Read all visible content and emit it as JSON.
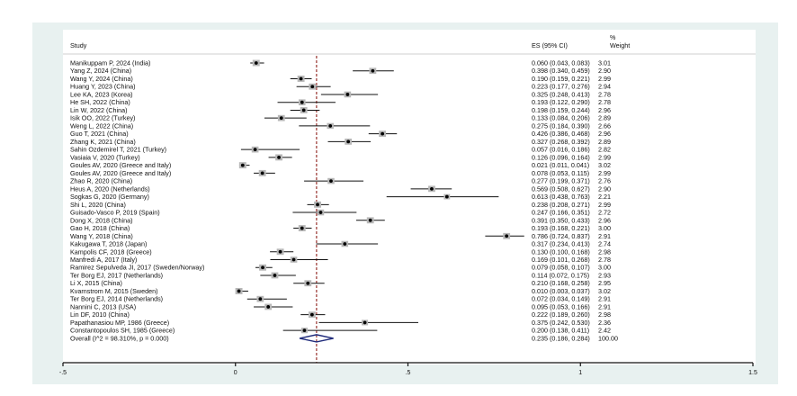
{
  "chart_data": {
    "type": "forest",
    "title": "",
    "headers": {
      "study": "Study",
      "es": "ES (95% CI)",
      "weight_top": "%",
      "weight": "Weight"
    },
    "xlim": [
      -0.5,
      1.5
    ],
    "xticks": [
      -0.5,
      0,
      0.5,
      1,
      1.5
    ],
    "xtick_labels": [
      "-.5",
      "0",
      ".5",
      "1",
      "1.5"
    ],
    "reference_line": 0.235,
    "colors": {
      "frame": "#e8f1f0",
      "marker": "#000000",
      "weight_box": "#b8b8b8",
      "ref_line": "#a0433f",
      "diamond": "#1f2a7a"
    },
    "studies": [
      {
        "label": "Manikuppam P, 2024 (India)",
        "es": 0.06,
        "lo": 0.043,
        "hi": 0.083,
        "ci_text": "0.060 (0.043, 0.083)",
        "weight": "3.01"
      },
      {
        "label": "Yang Z, 2024 (China)",
        "es": 0.398,
        "lo": 0.34,
        "hi": 0.459,
        "ci_text": "0.398 (0.340, 0.459)",
        "weight": "2.90"
      },
      {
        "label": "Wang Y, 2024 (China)",
        "es": 0.19,
        "lo": 0.159,
        "hi": 0.221,
        "ci_text": "0.190 (0.159, 0.221)",
        "weight": "2.99"
      },
      {
        "label": "Huang Y, 2023 (China)",
        "es": 0.223,
        "lo": 0.177,
        "hi": 0.276,
        "ci_text": "0.223 (0.177, 0.276)",
        "weight": "2.94"
      },
      {
        "label": "Lee KA, 2023 (Korea)",
        "es": 0.325,
        "lo": 0.248,
        "hi": 0.413,
        "ci_text": "0.325 (0.248, 0.413)",
        "weight": "2.78"
      },
      {
        "label": "He SH, 2022 (China)",
        "es": 0.193,
        "lo": 0.122,
        "hi": 0.29,
        "ci_text": "0.193 (0.122, 0.290)",
        "weight": "2.78"
      },
      {
        "label": "Lin W, 2022 (China)",
        "es": 0.198,
        "lo": 0.159,
        "hi": 0.244,
        "ci_text": "0.198 (0.159, 0.244)",
        "weight": "2.96"
      },
      {
        "label": "Isik OO, 2022 (Turkey)",
        "es": 0.133,
        "lo": 0.084,
        "hi": 0.206,
        "ci_text": "0.133 (0.084, 0.206)",
        "weight": "2.89"
      },
      {
        "label": "Weng L, 2022 (China)",
        "es": 0.275,
        "lo": 0.184,
        "hi": 0.39,
        "ci_text": "0.275 (0.184, 0.390)",
        "weight": "2.66"
      },
      {
        "label": "Guo T, 2021 (China)",
        "es": 0.426,
        "lo": 0.386,
        "hi": 0.468,
        "ci_text": "0.426 (0.386, 0.468)",
        "weight": "2.96"
      },
      {
        "label": "Zhang K, 2021 (China)",
        "es": 0.327,
        "lo": 0.268,
        "hi": 0.392,
        "ci_text": "0.327 (0.268, 0.392)",
        "weight": "2.89"
      },
      {
        "label": "Sahin Ozdemirel T, 2021 (Turkey)",
        "es": 0.057,
        "lo": 0.016,
        "hi": 0.186,
        "ci_text": "0.057 (0.016, 0.186)",
        "weight": "2.82"
      },
      {
        "label": "Vasiaia V, 2020 (Turkey)",
        "es": 0.126,
        "lo": 0.096,
        "hi": 0.164,
        "ci_text": "0.126 (0.096, 0.164)",
        "weight": "2.99"
      },
      {
        "label": "Goules AV, 2020 (Greece and Italy)",
        "es": 0.021,
        "lo": 0.011,
        "hi": 0.041,
        "ci_text": "0.021 (0.011, 0.041)",
        "weight": "3.02"
      },
      {
        "label": "Goules AV, 2020 (Greece and Italy)",
        "es": 0.078,
        "lo": 0.053,
        "hi": 0.115,
        "ci_text": "0.078 (0.053, 0.115)",
        "weight": "2.99"
      },
      {
        "label": "Zhao R, 2020 (China)",
        "es": 0.277,
        "lo": 0.199,
        "hi": 0.371,
        "ci_text": "0.277 (0.199, 0.371)",
        "weight": "2.76"
      },
      {
        "label": "Heus A, 2020 (Netherlands)",
        "es": 0.569,
        "lo": 0.508,
        "hi": 0.627,
        "ci_text": "0.569 (0.508, 0.627)",
        "weight": "2.90"
      },
      {
        "label": "Sogkas G, 2020 (Germany)",
        "es": 0.613,
        "lo": 0.438,
        "hi": 0.763,
        "ci_text": "0.613 (0.438, 0.763)",
        "weight": "2.21"
      },
      {
        "label": "Shi L, 2020 (China)",
        "es": 0.238,
        "lo": 0.208,
        "hi": 0.271,
        "ci_text": "0.238 (0.208, 0.271)",
        "weight": "2.99"
      },
      {
        "label": "Guisado-Vasco P, 2019 (Spain)",
        "es": 0.247,
        "lo": 0.166,
        "hi": 0.351,
        "ci_text": "0.247 (0.166, 0.351)",
        "weight": "2.72"
      },
      {
        "label": "Dong X, 2018 (China)",
        "es": 0.391,
        "lo": 0.35,
        "hi": 0.433,
        "ci_text": "0.391 (0.350, 0.433)",
        "weight": "2.96"
      },
      {
        "label": "Gao H, 2018 (China)",
        "es": 0.193,
        "lo": 0.168,
        "hi": 0.221,
        "ci_text": "0.193 (0.168, 0.221)",
        "weight": "3.00"
      },
      {
        "label": "Wang Y, 2018 (China)",
        "es": 0.786,
        "lo": 0.724,
        "hi": 0.837,
        "ci_text": "0.786 (0.724, 0.837)",
        "weight": "2.91"
      },
      {
        "label": "Kakugawa T, 2018 (Japan)",
        "es": 0.317,
        "lo": 0.234,
        "hi": 0.413,
        "ci_text": "0.317 (0.234, 0.413)",
        "weight": "2.74"
      },
      {
        "label": "Kampolis CF, 2018 (Greece)",
        "es": 0.13,
        "lo": 0.1,
        "hi": 0.168,
        "ci_text": "0.130 (0.100, 0.168)",
        "weight": "2.98"
      },
      {
        "label": "Manfredi A, 2017 (Italy)",
        "es": 0.169,
        "lo": 0.101,
        "hi": 0.268,
        "ci_text": "0.169 (0.101, 0.268)",
        "weight": "2.78"
      },
      {
        "label": "Ramirez Sepulveda JI, 2017 (Sweden/Norway)",
        "es": 0.079,
        "lo": 0.058,
        "hi": 0.107,
        "ci_text": "0.079 (0.058, 0.107)",
        "weight": "3.00"
      },
      {
        "label": "Ter Borg EJ, 2017 (Netherlands)",
        "es": 0.114,
        "lo": 0.072,
        "hi": 0.175,
        "ci_text": "0.114 (0.072, 0.175)",
        "weight": "2.93"
      },
      {
        "label": "Li X, 2015 (China)",
        "es": 0.21,
        "lo": 0.168,
        "hi": 0.258,
        "ci_text": "0.210 (0.168, 0.258)",
        "weight": "2.95"
      },
      {
        "label": "Kvarnstrom M, 2015 (Sweden)",
        "es": 0.01,
        "lo": 0.003,
        "hi": 0.037,
        "ci_text": "0.010 (0.003, 0.037)",
        "weight": "3.02"
      },
      {
        "label": "Ter Borg EJ, 2014 (Netherlands)",
        "es": 0.072,
        "lo": 0.034,
        "hi": 0.149,
        "ci_text": "0.072 (0.034, 0.149)",
        "weight": "2.91"
      },
      {
        "label": "Nannini C, 2013 (USA)",
        "es": 0.095,
        "lo": 0.053,
        "hi": 0.166,
        "ci_text": "0.095 (0.053, 0.166)",
        "weight": "2.91"
      },
      {
        "label": "Lin DF, 2010 (China)",
        "es": 0.222,
        "lo": 0.189,
        "hi": 0.26,
        "ci_text": "0.222 (0.189, 0.260)",
        "weight": "2.98"
      },
      {
        "label": "Papathanasiou MP, 1986 (Greece)",
        "es": 0.375,
        "lo": 0.242,
        "hi": 0.53,
        "ci_text": "0.375 (0.242, 0.530)",
        "weight": "2.36"
      },
      {
        "label": "Constantopoulos SH, 1985 (Greece)",
        "es": 0.2,
        "lo": 0.138,
        "hi": 0.411,
        "ci_text": "0.200 (0.138, 0.411)",
        "weight": "2.42"
      }
    ],
    "overall": {
      "label": "Overall  (I^2 = 98.310%, p = 0.000)",
      "es": 0.235,
      "lo": 0.186,
      "hi": 0.284,
      "ci_text": "0.235 (0.186, 0.284)",
      "weight": "100.00"
    }
  }
}
